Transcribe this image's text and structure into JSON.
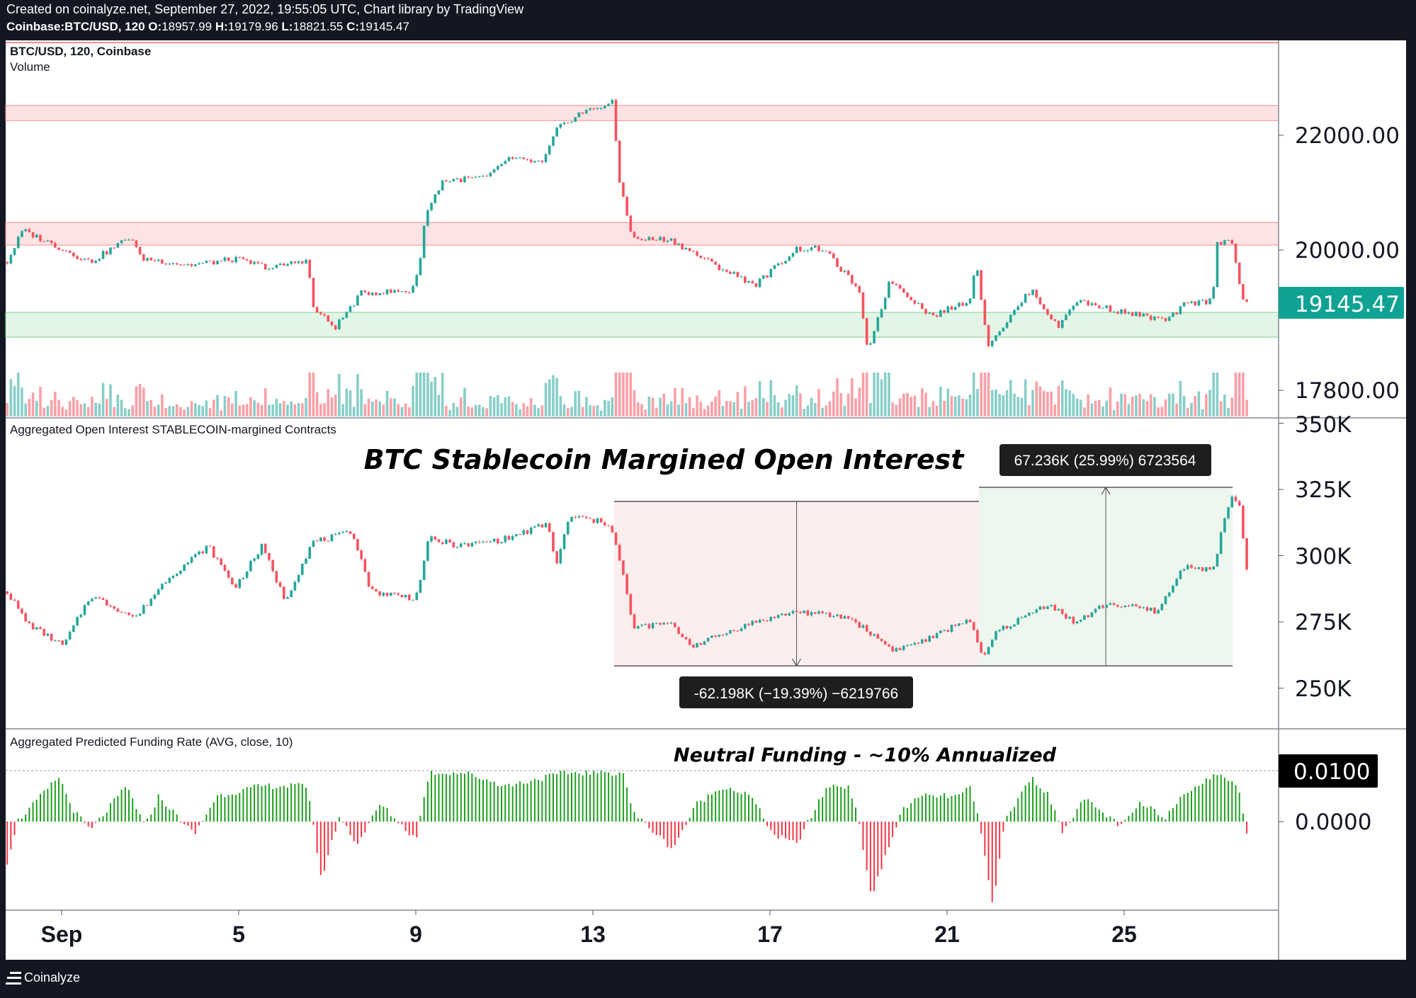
{
  "header": {
    "created_line": "Created on coinalyze.net, September 27, 2022, 19:55:05 UTC, Chart library by TradingView",
    "symbol": "Coinbase:BTC/USD, 120",
    "ohlc": [
      {
        "key": "O:",
        "value": "18957.99"
      },
      {
        "key": "H:",
        "value": "19179.96"
      },
      {
        "key": "L:",
        "value": "18821.55"
      },
      {
        "key": "C:",
        "value": "19145.47"
      }
    ]
  },
  "footer": {
    "brand": "Coinalyze"
  },
  "colors": {
    "up": "#26a69a",
    "down": "#f7525f",
    "funding_up": "#1f9e1f",
    "funding_down": "#f23645",
    "last_price_bg": "#0fa393"
  },
  "chart_data": [
    {
      "type": "candlestick",
      "pane": "price",
      "legend": [
        "BTC/USD, 120, Coinbase",
        "Volume"
      ],
      "scale": "log",
      "y_ticks": [
        "22000.00",
        "20000.00",
        "17800.00"
      ],
      "last_price": "19145.47",
      "x_unit": "day of September 2022",
      "close_waypoints": [
        [
          -0.23,
          19800
        ],
        [
          0.12,
          20330
        ],
        [
          1.65,
          19800
        ],
        [
          2.57,
          20230
        ],
        [
          2.78,
          19870
        ],
        [
          3.9,
          19750
        ],
        [
          4.92,
          19850
        ],
        [
          5.74,
          19700
        ],
        [
          6.56,
          19850
        ],
        [
          6.66,
          19080
        ],
        [
          7.17,
          18750
        ],
        [
          7.78,
          19300
        ],
        [
          8.9,
          19330
        ],
        [
          9.1,
          19800
        ],
        [
          9.2,
          20560
        ],
        [
          9.6,
          21180
        ],
        [
          10.65,
          21250
        ],
        [
          11.06,
          21580
        ],
        [
          11.88,
          21500
        ],
        [
          12.18,
          22100
        ],
        [
          12.69,
          22400
        ],
        [
          13.44,
          22600
        ],
        [
          13.6,
          21180
        ],
        [
          13.9,
          20180
        ],
        [
          14.73,
          20180
        ],
        [
          15.75,
          19750
        ],
        [
          16.67,
          19430
        ],
        [
          17.6,
          20020
        ],
        [
          18.2,
          20020
        ],
        [
          19.0,
          19360
        ],
        [
          19.2,
          18390
        ],
        [
          19.72,
          19510
        ],
        [
          20.65,
          18930
        ],
        [
          21.5,
          19180
        ],
        [
          21.67,
          19800
        ],
        [
          21.9,
          18480
        ],
        [
          22.3,
          18800
        ],
        [
          22.9,
          19360
        ],
        [
          23.5,
          18750
        ],
        [
          23.9,
          19180
        ],
        [
          24.95,
          19000
        ],
        [
          25.97,
          18860
        ],
        [
          26.38,
          19120
        ],
        [
          26.99,
          19180
        ],
        [
          27.1,
          20100
        ],
        [
          27.4,
          20230
        ],
        [
          27.7,
          19100
        ],
        [
          27.76,
          19145
        ]
      ],
      "zones": [
        {
          "color": "red",
          "line": 23760
        },
        {
          "color": "red",
          "from": 22270,
          "to": 22550
        },
        {
          "color": "red",
          "from": 20082,
          "to": 20464
        },
        {
          "color": "green",
          "from": 18604,
          "to": 18991
        }
      ]
    },
    {
      "type": "candlestick",
      "pane": "open_interest",
      "legend": "Aggregated Open Interest STABLECOIN-margined Contracts",
      "title": "BTC Stablecoin Margined Open Interest",
      "y_ticks": [
        "350K",
        "325K",
        "300K",
        "275K",
        "250K"
      ],
      "y_unit": "K",
      "close_waypoints": [
        [
          -0.23,
          286.5
        ],
        [
          0.22,
          274.5
        ],
        [
          1.04,
          266
        ],
        [
          1.65,
          285
        ],
        [
          2.67,
          276.5
        ],
        [
          3.39,
          291.5
        ],
        [
          4.31,
          303.6
        ],
        [
          4.92,
          288
        ],
        [
          5.53,
          303.6
        ],
        [
          6.05,
          283
        ],
        [
          6.66,
          305
        ],
        [
          7.58,
          308.7
        ],
        [
          7.99,
          286.5
        ],
        [
          9.0,
          284
        ],
        [
          9.3,
          306.4
        ],
        [
          10.0,
          303.6
        ],
        [
          11.05,
          306.4
        ],
        [
          11.97,
          312
        ],
        [
          12.18,
          296.8
        ],
        [
          12.48,
          314.9
        ],
        [
          13.4,
          312
        ],
        [
          13.7,
          291.5
        ],
        [
          13.9,
          272.9
        ],
        [
          14.73,
          274.5
        ],
        [
          15.24,
          266
        ],
        [
          16.57,
          274.5
        ],
        [
          17.6,
          279
        ],
        [
          18.8,
          276.5
        ],
        [
          19.8,
          264.3
        ],
        [
          20.65,
          269
        ],
        [
          21.5,
          276.5
        ],
        [
          21.8,
          260.8
        ],
        [
          22.1,
          271
        ],
        [
          23.3,
          282
        ],
        [
          23.9,
          274.5
        ],
        [
          24.6,
          282
        ],
        [
          25.76,
          279
        ],
        [
          26.38,
          296.7
        ],
        [
          26.99,
          294
        ],
        [
          27.4,
          322.3
        ],
        [
          27.6,
          319
        ],
        [
          27.76,
          294
        ]
      ],
      "measurements": [
        {
          "label": "-62.198K (−19.39%) −6219766",
          "day_from": 13.48,
          "day_to": 21.72,
          "top": 320.5,
          "bottom": 258.4,
          "direction": "down",
          "color": "red"
        },
        {
          "label": "67.236K (25.99%) 6723564",
          "day_from": 21.72,
          "day_to": 27.45,
          "top": 325.8,
          "bottom": 258.4,
          "direction": "up",
          "color": "green"
        }
      ]
    },
    {
      "type": "bar",
      "pane": "funding",
      "legend": "Aggregated Predicted Funding Rate (AVG, close, 10)",
      "annotation": "Neutral Funding - ~10% Annualized",
      "y_ticks": [
        "0.0100",
        "0.0000"
      ],
      "reference_line": 0.01,
      "value_waypoints": [
        [
          -0.23,
          -0.0079
        ],
        [
          0,
          0
        ],
        [
          0.94,
          0.0088
        ],
        [
          1.24,
          0.0026
        ],
        [
          1.65,
          -0.0018
        ],
        [
          2.47,
          0.007
        ],
        [
          2.88,
          -0.001
        ],
        [
          3.19,
          0.005
        ],
        [
          4.0,
          -0.0026
        ],
        [
          4.5,
          0.005
        ],
        [
          5.53,
          0.007
        ],
        [
          6.56,
          0.007
        ],
        [
          6.86,
          -0.0114
        ],
        [
          7.27,
          0.001
        ],
        [
          7.68,
          -0.0044
        ],
        [
          8.2,
          0.0035
        ],
        [
          9.0,
          -0.0035
        ],
        [
          9.3,
          0.0096
        ],
        [
          10.1,
          0.0096
        ],
        [
          11.05,
          0.007
        ],
        [
          12.38,
          0.0096
        ],
        [
          13.7,
          0.0096
        ],
        [
          13.9,
          0.0018
        ],
        [
          14.8,
          -0.0053
        ],
        [
          15.35,
          0.0035
        ],
        [
          15.96,
          0.007
        ],
        [
          16.57,
          0.005
        ],
        [
          17.08,
          -0.0026
        ],
        [
          17.6,
          -0.0044
        ],
        [
          18.3,
          0.007
        ],
        [
          18.8,
          0.007
        ],
        [
          19.0,
          0
        ],
        [
          19.3,
          -0.0149
        ],
        [
          19.6,
          -0.007
        ],
        [
          20.0,
          0.0026
        ],
        [
          20.45,
          0.005
        ],
        [
          21.3,
          0.005
        ],
        [
          21.5,
          0.007
        ],
        [
          21.7,
          0.001
        ],
        [
          22.05,
          -0.0167
        ],
        [
          22.3,
          0
        ],
        [
          22.9,
          0.0088
        ],
        [
          23.3,
          0.005
        ],
        [
          23.6,
          -0.0018
        ],
        [
          24.1,
          0.0044
        ],
        [
          24.95,
          -0.001
        ],
        [
          25.35,
          0.0035
        ],
        [
          25.95,
          0.001
        ],
        [
          26.38,
          0.006
        ],
        [
          27.2,
          0.0096
        ],
        [
          27.6,
          0.006
        ],
        [
          27.76,
          -0.0018
        ]
      ]
    }
  ],
  "time_axis": [
    {
      "label": "Sep",
      "day": 1
    },
    {
      "label": "5",
      "day": 5
    },
    {
      "label": "9",
      "day": 9
    },
    {
      "label": "13",
      "day": 13
    },
    {
      "label": "17",
      "day": 17
    },
    {
      "label": "21",
      "day": 21
    },
    {
      "label": "25",
      "day": 25
    }
  ]
}
